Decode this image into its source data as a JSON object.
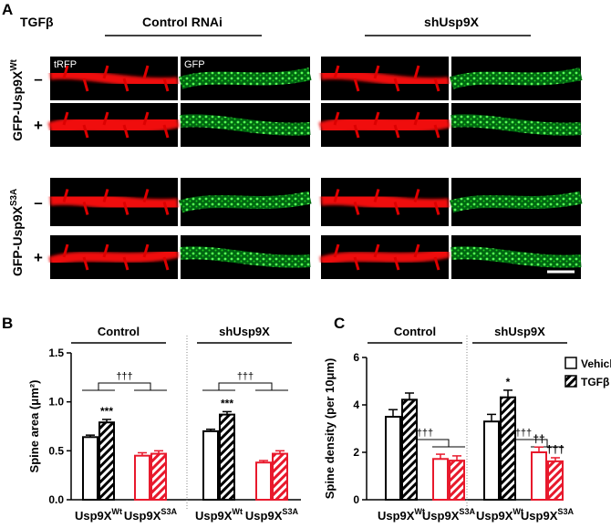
{
  "panel_a": {
    "label": "A",
    "treatment": "TGFβ",
    "conditions": [
      "Control RNAi",
      "shUsp9X"
    ],
    "channels": [
      "tRFP",
      "GFP"
    ],
    "constructs": [
      {
        "text": "GFP-Usp9X",
        "sup": "Wt"
      },
      {
        "text": "GFP-Usp9X",
        "sup": "S3A"
      }
    ],
    "signs": [
      "–",
      "+"
    ]
  },
  "chart_data": [
    {
      "type": "bar",
      "label": "B",
      "groups": [
        "Control",
        "shUsp9X"
      ],
      "categories": [
        {
          "text": "Usp9X",
          "sup": "Wt"
        },
        {
          "text": "Usp9X",
          "sup": "S3A"
        },
        {
          "text": "Usp9X",
          "sup": "Wt"
        },
        {
          "text": "Usp9X",
          "sup": "S3A"
        }
      ],
      "category_colors": [
        "#000000",
        "#e8192c",
        "#000000",
        "#e8192c"
      ],
      "ylabel": "Spine area (μm²)",
      "ylim": [
        0,
        1.5
      ],
      "yticks": [
        {
          "value": 0,
          "label": "0.0"
        },
        0.5,
        {
          "value": 1,
          "label": "1.0"
        },
        1.5
      ],
      "series": [
        {
          "name": "Vehicle",
          "values": [
            0.64,
            0.45,
            0.7,
            0.38
          ],
          "errors": [
            0.02,
            0.03,
            0.02,
            0.02
          ]
        },
        {
          "name": "TGFβ",
          "hatch": true,
          "values": [
            0.79,
            0.47,
            0.87,
            0.47
          ],
          "errors": [
            0.03,
            0.03,
            0.03,
            0.03
          ],
          "annotations": [
            "***",
            null,
            "***",
            null
          ]
        }
      ],
      "bracket_labels": [
        "†††",
        "†††"
      ],
      "legend": false
    },
    {
      "type": "bar",
      "label": "C",
      "groups": [
        "Control",
        "shUsp9X"
      ],
      "categories": [
        {
          "text": "Usp9X",
          "sup": "Wt"
        },
        {
          "text": "Usp9X",
          "sup": "S3A"
        },
        {
          "text": "Usp9X",
          "sup": "Wt"
        },
        {
          "text": "Usp9X",
          "sup": "S3A"
        }
      ],
      "category_colors": [
        "#000000",
        "#e8192c",
        "#000000",
        "#e8192c"
      ],
      "ylabel": "Spine density (per 10μm)",
      "ylim": [
        0,
        6
      ],
      "yticks": [
        0,
        2,
        4,
        6
      ],
      "series": [
        {
          "name": "Vehicle",
          "values": [
            3.5,
            1.72,
            3.3,
            2.0
          ],
          "errors": [
            0.3,
            0.2,
            0.3,
            0.22
          ],
          "annotations": [
            null,
            null,
            null,
            "††"
          ]
        },
        {
          "name": "TGFβ",
          "hatch": true,
          "values": [
            4.22,
            1.65,
            4.32,
            1.62
          ],
          "errors": [
            0.28,
            0.2,
            0.3,
            0.15
          ],
          "annotations": [
            null,
            null,
            "*",
            "†††"
          ]
        }
      ],
      "bracket_labels": [
        "†††",
        "†††"
      ],
      "legend": true
    }
  ]
}
